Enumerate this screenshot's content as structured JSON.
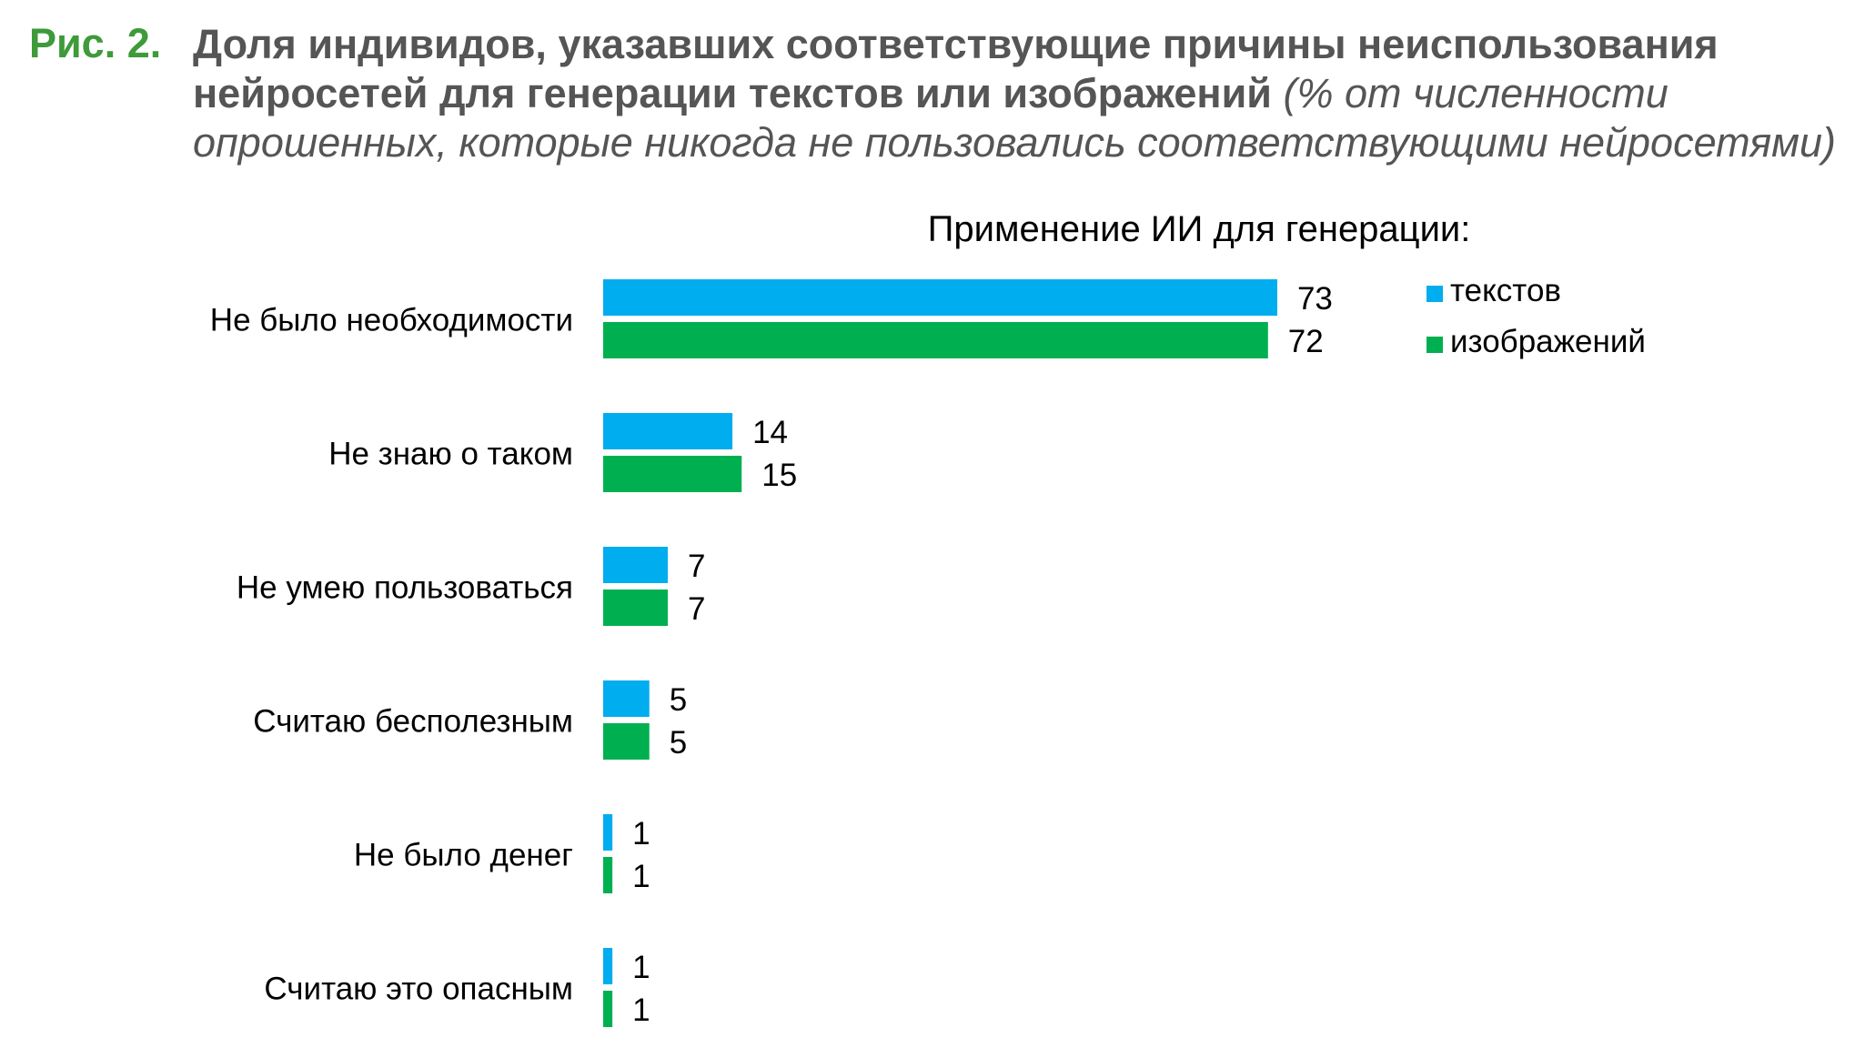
{
  "figure": {
    "label": "Рис. 2.",
    "title_bold": "Доля индивидов, указавших соответствующие причины неиспользования нейросетей для генерации текстов или изображений",
    "title_italic": "(% от численности опрошенных, которые никогда не пользовались соответствующими нейросетями)"
  },
  "chart_data": {
    "type": "bar",
    "orientation": "horizontal",
    "legend_title": "Применение ИИ для генерации:",
    "legend_position": "top-right",
    "categories": [
      "Не было необходимости",
      "Не знаю о таком",
      "Не умею пользоваться",
      "Считаю бесполезным",
      "Не было денег",
      "Считаю это опасным"
    ],
    "series": [
      {
        "name": "текстов",
        "color": "#00adef",
        "values": [
          73,
          14,
          7,
          5,
          1,
          1
        ]
      },
      {
        "name": "изображений",
        "color": "#00b050",
        "values": [
          72,
          15,
          7,
          5,
          1,
          1
        ]
      }
    ],
    "xlim": [
      0,
      100
    ],
    "grid": false,
    "data_labels": true
  }
}
